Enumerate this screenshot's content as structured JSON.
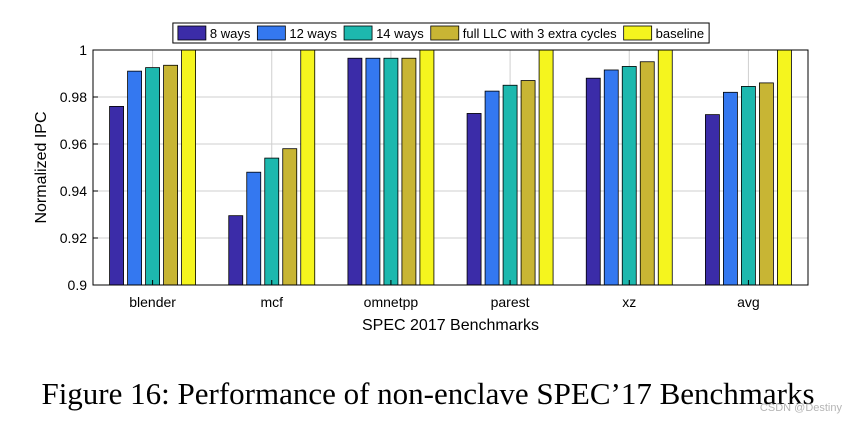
{
  "caption": "Figure 16: Performance of non-enclave SPEC’17 Benchmarks",
  "watermark": "CSDN @Destiny",
  "chart_data": {
    "type": "bar",
    "xlabel": "SPEC 2017 Benchmarks",
    "ylabel": "Normalized IPC",
    "ylim": [
      0.9,
      1.0
    ],
    "yticks": [
      0.9,
      0.92,
      0.94,
      0.96,
      0.98,
      1
    ],
    "grid": true,
    "legend_position": "top",
    "categories": [
      "blender",
      "mcf",
      "omnetpp",
      "parest",
      "xz",
      "avg"
    ],
    "series": [
      {
        "name": "8 ways",
        "color": "#3b2ca8",
        "values": [
          0.976,
          0.9295,
          0.9965,
          0.973,
          0.988,
          0.9725
        ]
      },
      {
        "name": "12 ways",
        "color": "#3478f0",
        "values": [
          0.991,
          0.948,
          0.9965,
          0.9825,
          0.9915,
          0.982
        ]
      },
      {
        "name": "14 ways",
        "color": "#1db8ae",
        "values": [
          0.9925,
          0.954,
          0.9965,
          0.985,
          0.993,
          0.9845
        ]
      },
      {
        "name": "full LLC with 3 extra cycles",
        "color": "#c8b534",
        "values": [
          0.9935,
          0.958,
          0.9965,
          0.987,
          0.995,
          0.986
        ]
      },
      {
        "name": "baseline",
        "color": "#f5f51e",
        "values": [
          1.0,
          1.0,
          1.0,
          1.0,
          1.0,
          1.0
        ]
      }
    ]
  }
}
